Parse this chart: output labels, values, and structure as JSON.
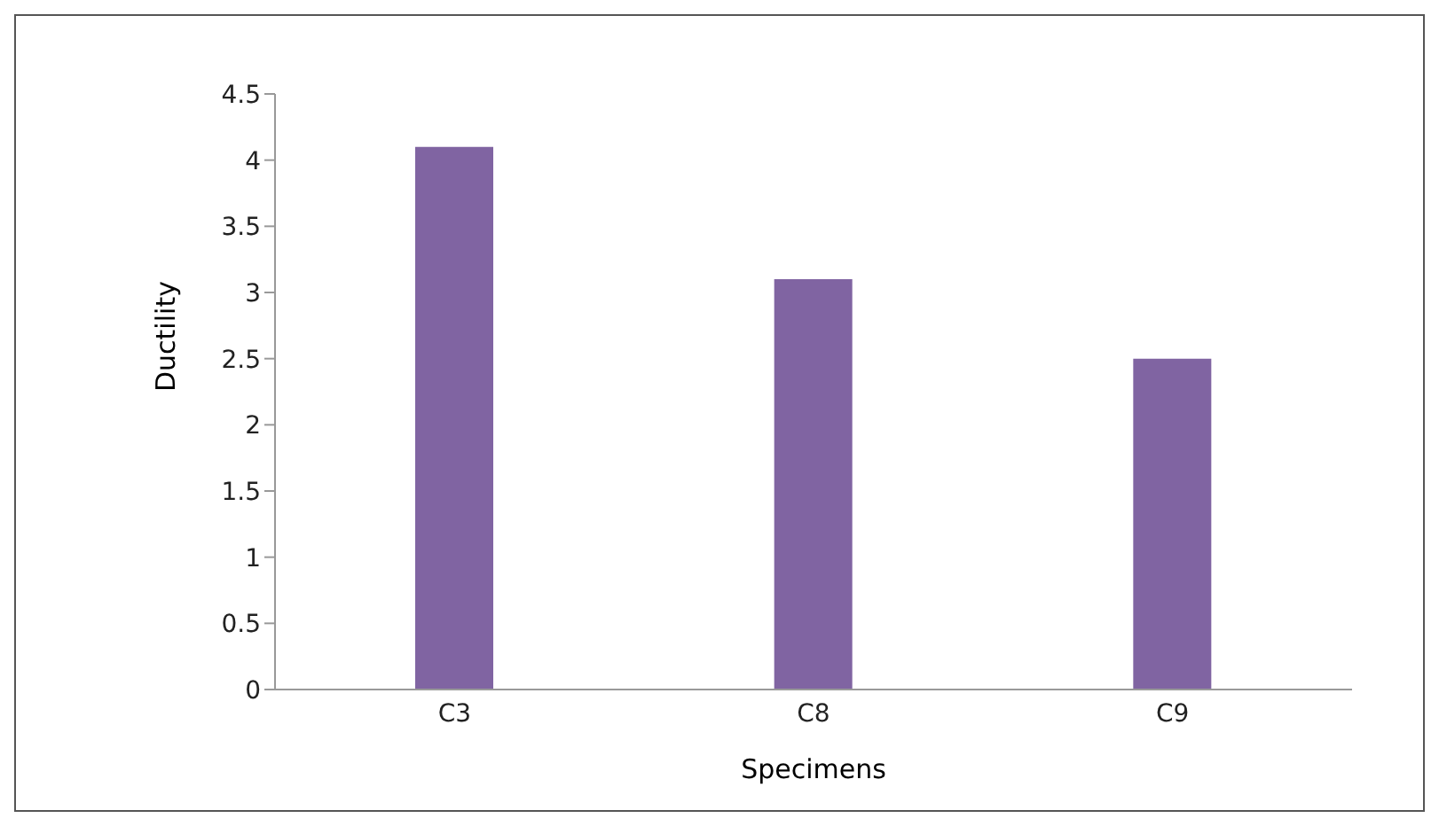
{
  "chart_data": {
    "type": "bar",
    "xlabel": "Specimens",
    "ylabel": "Ductility",
    "categories": [
      "C3",
      "C8",
      "C9"
    ],
    "values": [
      4.1,
      3.1,
      2.5
    ],
    "color": "#8064a2",
    "ylim": [
      0,
      4.5
    ],
    "yticks": [
      0,
      0.5,
      1,
      1.5,
      2,
      2.5,
      3,
      3.5,
      4,
      4.5
    ],
    "grid": false
  }
}
